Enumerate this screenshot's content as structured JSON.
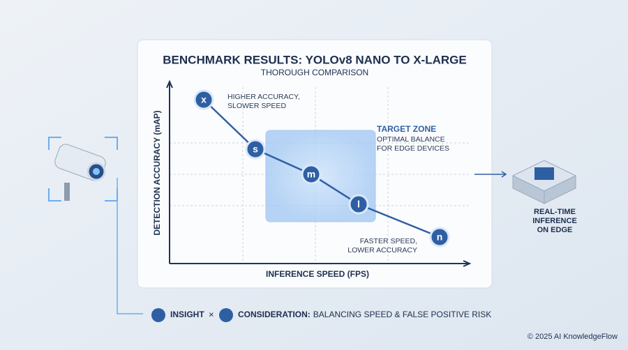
{
  "header": {
    "title": "BENCHMARK RESULTS: YOLOv8 NANO TO X-LARGE",
    "subtitle": "THOROUGH COMPARISON"
  },
  "axes": {
    "y_label": "DETECTION ACCURACY (mAP)",
    "x_label": "INFERENCE SPEED (FPS)"
  },
  "models": [
    {
      "label": "x"
    },
    {
      "label": "s"
    },
    {
      "label": "m"
    },
    {
      "label": "l"
    },
    {
      "label": "n"
    }
  ],
  "annotations": {
    "top": [
      "HIGHER ACCURACY,",
      "SLOWER SPEED"
    ],
    "target_zone": {
      "title": "TARGET ZONE",
      "lines": [
        "OPTIMAL BALANCE",
        "FOR EDGE DEVICES"
      ]
    },
    "bottom": [
      "FASTER SPEED,",
      "LOWER ACCURACY"
    ]
  },
  "edge": {
    "lines": [
      "REAL-TIME",
      "INFERENCE",
      "ON EDGE"
    ]
  },
  "footer": {
    "insight": "INSIGHT",
    "separator": "×",
    "consideration": "CONSIDERATION:",
    "text": "BALANCING SPEED & FALSE POSITIVE RISK"
  },
  "copyright": "© 2025 AI KnowledgeFlow"
}
